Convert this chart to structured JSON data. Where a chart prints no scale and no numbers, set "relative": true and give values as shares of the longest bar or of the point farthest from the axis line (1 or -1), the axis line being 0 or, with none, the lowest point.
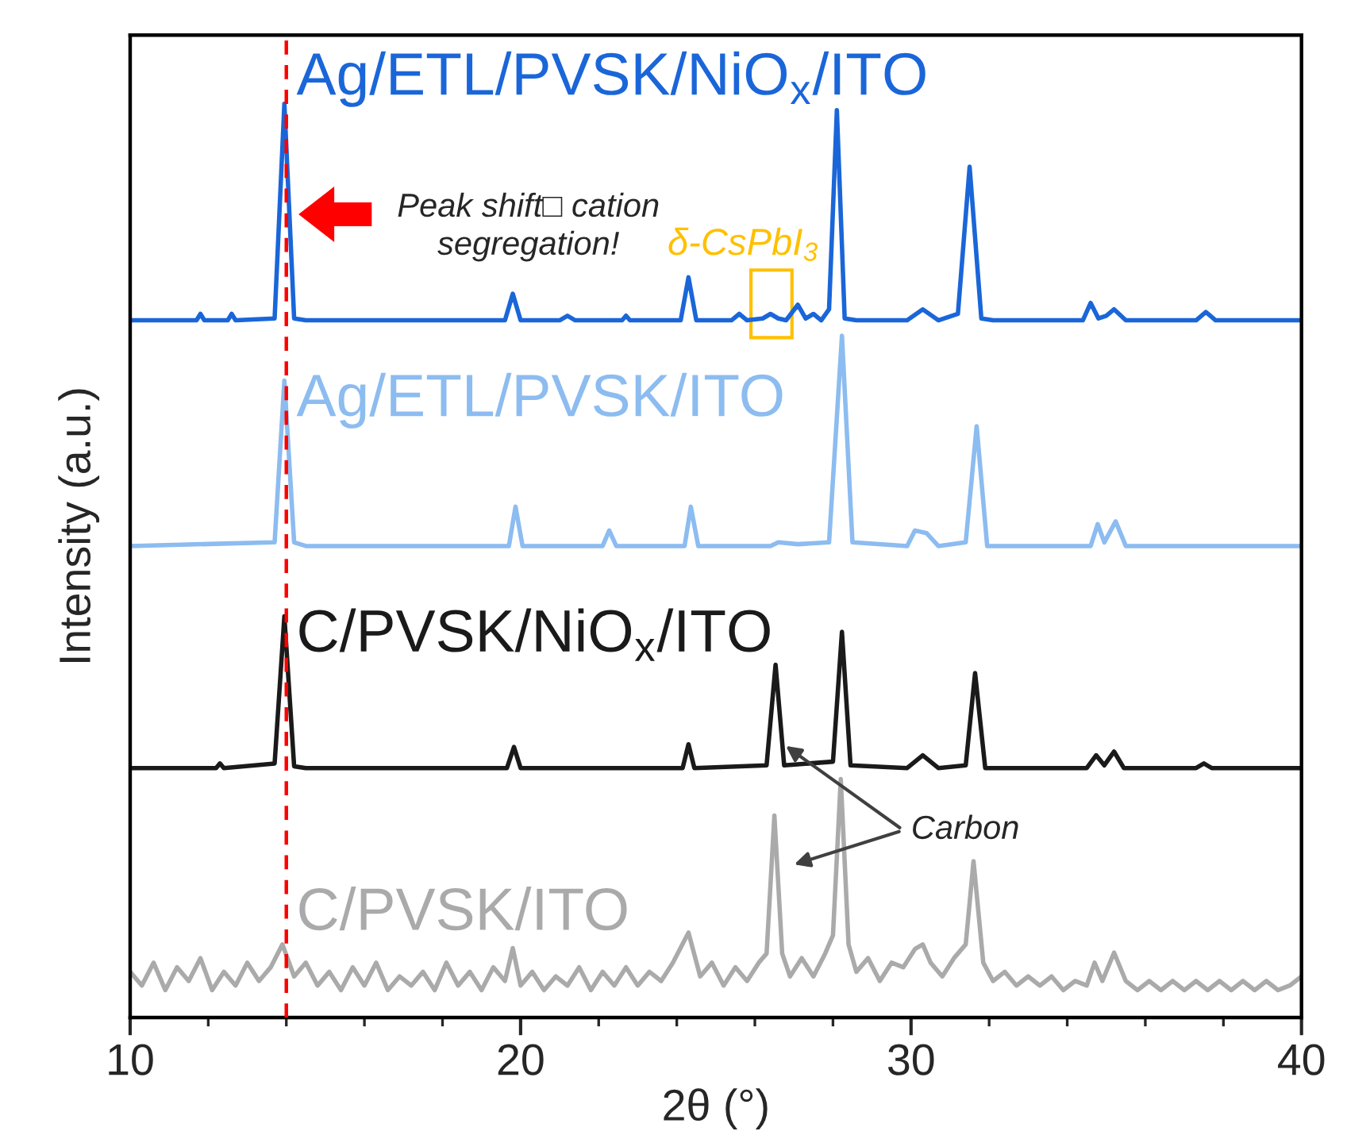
{
  "chart_data": {
    "type": "line",
    "xlabel": "2θ (°)",
    "ylabel": "Intensity (a.u.)",
    "relative": true,
    "xlim": [
      10,
      40
    ],
    "xticks": [
      10,
      {
        "value": 12,
        "label": null
      },
      {
        "value": 14,
        "label": null
      },
      {
        "value": 16,
        "label": null
      },
      {
        "value": 18,
        "label": null
      },
      20,
      {
        "value": 22,
        "label": null
      },
      {
        "value": 24,
        "label": null
      },
      {
        "value": 26,
        "label": null
      },
      {
        "value": 28,
        "label": null
      },
      30,
      {
        "value": 32,
        "label": null
      },
      {
        "value": 34,
        "label": null
      },
      {
        "value": 36,
        "label": null
      },
      {
        "value": 38,
        "label": null
      },
      40
    ],
    "grid": false,
    "ref_lines": [
      {
        "axis": "x",
        "value": 14.0,
        "color": "#ff0000",
        "line_style": "dashed"
      }
    ],
    "annotations": [
      "Peak shift□ cation\nsegregation!",
      {
        "text": "δ-CsPbI$_{3}$",
        "x": 26.4,
        "y": 0.78
      },
      "Carbon"
    ],
    "series": [
      {
        "name": "Ag/ETL/PVSK/NiO$_{x}$/ITO",
        "color": "#1a66d9",
        "x": [
          10.0,
          11.7,
          11.8,
          11.9,
          12.5,
          12.6,
          12.7,
          13.7,
          13.95,
          14.2,
          14.5,
          19.6,
          19.8,
          20.0,
          21.0,
          21.2,
          21.4,
          22.6,
          22.7,
          22.8,
          24.1,
          24.3,
          24.5,
          25.4,
          25.6,
          25.8,
          26.2,
          26.4,
          26.6,
          26.8,
          27.1,
          27.3,
          27.5,
          27.7,
          27.9,
          28.1,
          28.3,
          28.6,
          29.9,
          30.3,
          30.7,
          31.2,
          31.5,
          31.8,
          32.1,
          34.4,
          34.6,
          34.8,
          35.0,
          35.2,
          35.5,
          37.3,
          37.55,
          37.8,
          40.0
        ],
        "values": [
          0.763,
          0.763,
          0.77,
          0.763,
          0.763,
          0.77,
          0.763,
          0.765,
          1.0,
          0.765,
          0.763,
          0.763,
          0.792,
          0.763,
          0.763,
          0.768,
          0.763,
          0.763,
          0.768,
          0.763,
          0.763,
          0.81,
          0.763,
          0.763,
          0.77,
          0.763,
          0.765,
          0.77,
          0.765,
          0.763,
          0.78,
          0.765,
          0.77,
          0.763,
          0.775,
          0.993,
          0.765,
          0.763,
          0.763,
          0.775,
          0.763,
          0.77,
          0.931,
          0.765,
          0.763,
          0.763,
          0.782,
          0.765,
          0.768,
          0.775,
          0.763,
          0.763,
          0.772,
          0.763,
          0.763
        ]
      },
      {
        "name": "Ag/ETL/PVSK/ITO",
        "color": "#8cbcf0",
        "x": [
          10.0,
          13.7,
          13.95,
          14.2,
          14.5,
          19.7,
          19.87,
          20.05,
          22.1,
          22.27,
          22.45,
          24.2,
          24.36,
          24.55,
          26.4,
          26.6,
          27.1,
          27.9,
          28.23,
          28.5,
          29.9,
          30.1,
          30.4,
          30.7,
          31.4,
          31.68,
          31.95,
          34.6,
          34.78,
          34.95,
          35.24,
          35.5,
          40.0
        ],
        "values": [
          0.516,
          0.52,
          0.697,
          0.52,
          0.516,
          0.516,
          0.559,
          0.516,
          0.516,
          0.533,
          0.516,
          0.516,
          0.559,
          0.516,
          0.516,
          0.52,
          0.518,
          0.52,
          0.746,
          0.52,
          0.516,
          0.533,
          0.53,
          0.516,
          0.52,
          0.647,
          0.516,
          0.516,
          0.54,
          0.52,
          0.543,
          0.516,
          0.516
        ]
      },
      {
        "name": "C/PVSK/NiO$_{x}$/ITO",
        "color": "#1a1a1a",
        "x": [
          10.0,
          12.2,
          12.3,
          12.4,
          13.7,
          13.95,
          14.2,
          14.5,
          19.65,
          19.83,
          20.0,
          24.15,
          24.3,
          24.45,
          26.3,
          26.53,
          26.75,
          28.0,
          28.23,
          28.45,
          29.9,
          30.3,
          30.7,
          31.4,
          31.64,
          31.9,
          34.5,
          34.74,
          34.95,
          35.2,
          35.45,
          37.3,
          37.5,
          37.7,
          40.0
        ],
        "values": [
          0.273,
          0.273,
          0.278,
          0.273,
          0.278,
          0.439,
          0.275,
          0.273,
          0.273,
          0.296,
          0.273,
          0.273,
          0.299,
          0.273,
          0.276,
          0.386,
          0.276,
          0.28,
          0.422,
          0.276,
          0.273,
          0.287,
          0.273,
          0.276,
          0.377,
          0.273,
          0.273,
          0.287,
          0.276,
          0.291,
          0.273,
          0.273,
          0.278,
          0.273,
          0.273
        ]
      },
      {
        "name": "C/PVSK/ITO",
        "color": "#aaaaaa",
        "x": [
          10.0,
          10.3,
          10.6,
          10.9,
          11.2,
          11.5,
          11.8,
          12.1,
          12.4,
          12.7,
          13.0,
          13.3,
          13.6,
          13.9,
          14.2,
          14.5,
          14.8,
          15.1,
          15.4,
          15.7,
          16.0,
          16.3,
          16.6,
          16.9,
          17.2,
          17.5,
          17.8,
          18.1,
          18.4,
          18.7,
          19.0,
          19.3,
          19.6,
          19.8,
          20.0,
          20.3,
          20.6,
          20.9,
          21.2,
          21.5,
          21.8,
          22.1,
          22.4,
          22.7,
          23.0,
          23.3,
          23.6,
          23.9,
          24.3,
          24.6,
          24.9,
          25.2,
          25.5,
          25.8,
          26.1,
          26.3,
          26.5,
          26.7,
          26.9,
          27.2,
          27.5,
          27.8,
          28.0,
          28.2,
          28.4,
          28.6,
          28.9,
          29.2,
          29.5,
          29.8,
          30.1,
          30.3,
          30.5,
          30.8,
          31.1,
          31.4,
          31.6,
          31.85,
          32.1,
          32.4,
          32.7,
          33.0,
          33.3,
          33.6,
          33.9,
          34.2,
          34.5,
          34.7,
          34.9,
          35.2,
          35.5,
          35.8,
          36.1,
          36.4,
          36.7,
          37.0,
          37.3,
          37.6,
          37.9,
          38.2,
          38.5,
          38.8,
          39.1,
          39.4,
          39.7,
          40.0
        ],
        "values": [
          0.05,
          0.035,
          0.06,
          0.03,
          0.055,
          0.04,
          0.065,
          0.03,
          0.05,
          0.035,
          0.06,
          0.04,
          0.055,
          0.08,
          0.045,
          0.06,
          0.035,
          0.05,
          0.03,
          0.055,
          0.035,
          0.06,
          0.03,
          0.045,
          0.035,
          0.05,
          0.03,
          0.06,
          0.035,
          0.05,
          0.03,
          0.055,
          0.04,
          0.076,
          0.035,
          0.05,
          0.03,
          0.045,
          0.035,
          0.055,
          0.03,
          0.05,
          0.035,
          0.055,
          0.035,
          0.05,
          0.04,
          0.06,
          0.093,
          0.045,
          0.06,
          0.035,
          0.055,
          0.04,
          0.06,
          0.07,
          0.221,
          0.07,
          0.045,
          0.065,
          0.045,
          0.07,
          0.09,
          0.261,
          0.08,
          0.05,
          0.065,
          0.04,
          0.06,
          0.055,
          0.075,
          0.08,
          0.06,
          0.045,
          0.065,
          0.08,
          0.171,
          0.06,
          0.04,
          0.05,
          0.035,
          0.045,
          0.035,
          0.045,
          0.03,
          0.04,
          0.035,
          0.06,
          0.04,
          0.071,
          0.04,
          0.03,
          0.04,
          0.03,
          0.04,
          0.03,
          0.04,
          0.03,
          0.04,
          0.03,
          0.04,
          0.03,
          0.04,
          0.03,
          0.035,
          0.045
        ]
      }
    ]
  }
}
